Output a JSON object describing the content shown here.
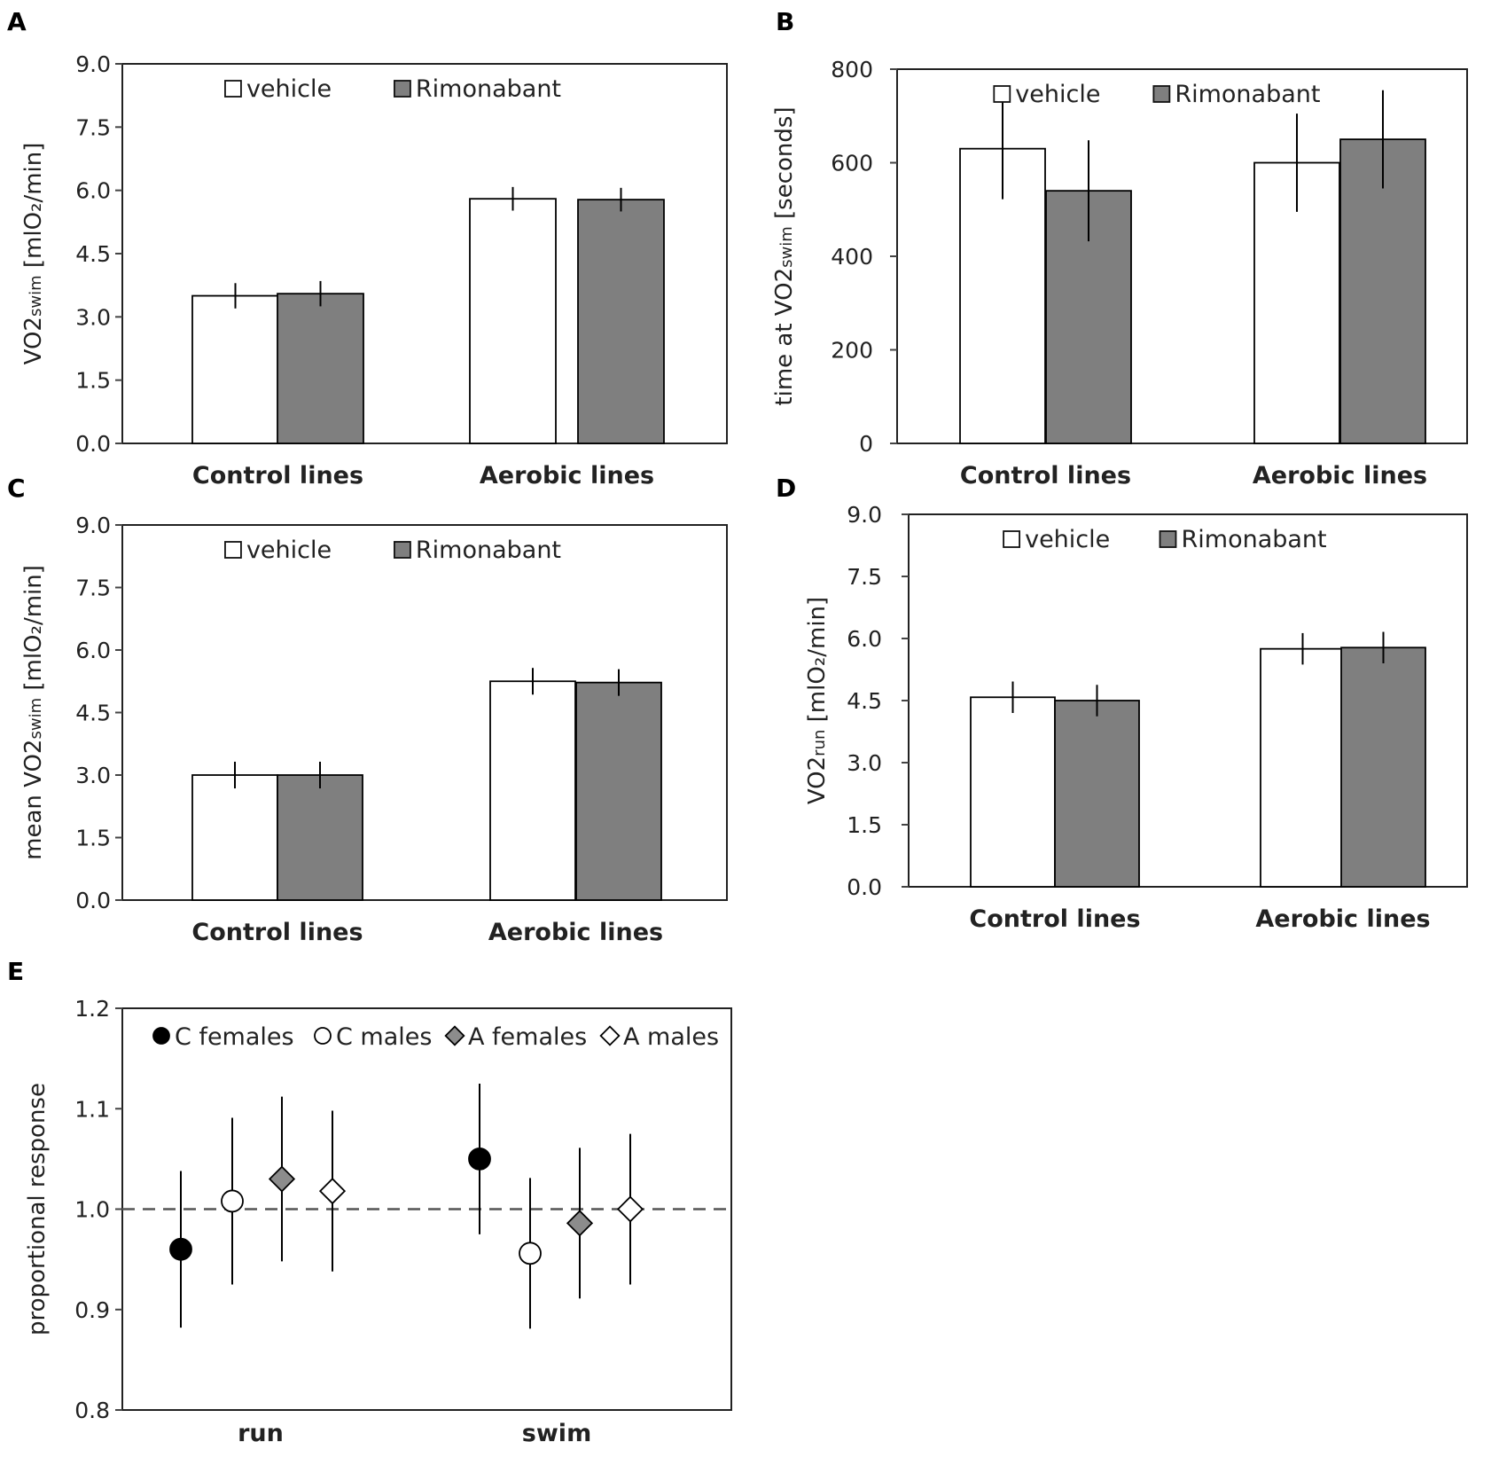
{
  "colors": {
    "vehicle": "#ffffff",
    "rimonabant": "#7f7f7f",
    "axis": "#444444",
    "frame": "#222222",
    "dark": "#000000",
    "diamond": "#8c8c8c"
  },
  "legend": {
    "vehicle": "vehicle",
    "rimonabant": "Rimonabant"
  },
  "chart_data": [
    {
      "panel": "A",
      "type": "bar",
      "ylabel": "VO2",
      "ylabel_sub": "swim",
      "ylabel_unit": "[mlO₂/min]",
      "categories": [
        "Control lines",
        "Aerobic lines"
      ],
      "ylim": [
        0,
        9.0
      ],
      "yticks": [
        "0.0",
        "1.5",
        "3.0",
        "4.5",
        "6.0",
        "7.5",
        "9.0"
      ],
      "series": [
        {
          "name": "vehicle",
          "values": [
            3.5,
            5.8
          ],
          "errors": [
            0.3,
            0.28
          ]
        },
        {
          "name": "Rimonabant",
          "values": [
            3.55,
            5.78
          ],
          "errors": [
            0.3,
            0.28
          ]
        }
      ]
    },
    {
      "panel": "B",
      "type": "bar",
      "ylabel": "time at VO2",
      "ylabel_sub": "swim",
      "ylabel_unit": "[seconds]",
      "categories": [
        "Control lines",
        "Aerobic lines"
      ],
      "ylim": [
        0,
        800
      ],
      "yticks": [
        "0",
        "200",
        "400",
        "600",
        "800"
      ],
      "series": [
        {
          "name": "vehicle",
          "values": [
            630,
            600
          ],
          "errors": [
            108,
            105
          ]
        },
        {
          "name": "Rimonabant",
          "values": [
            540,
            650
          ],
          "errors": [
            108,
            105
          ]
        }
      ]
    },
    {
      "panel": "C",
      "type": "bar",
      "ylabel": "mean VO2",
      "ylabel_sub": "swim",
      "ylabel_unit": "[mlO₂/min]",
      "categories": [
        "Control lines",
        "Aerobic lines"
      ],
      "ylim": [
        0,
        9.0
      ],
      "yticks": [
        "0.0",
        "1.5",
        "3.0",
        "4.5",
        "6.0",
        "7.5",
        "9.0"
      ],
      "series": [
        {
          "name": "vehicle",
          "values": [
            3.0,
            5.25
          ],
          "errors": [
            0.32,
            0.32
          ]
        },
        {
          "name": "Rimonabant",
          "values": [
            3.0,
            5.22
          ],
          "errors": [
            0.32,
            0.32
          ]
        }
      ]
    },
    {
      "panel": "D",
      "type": "bar",
      "ylabel": "VO2",
      "ylabel_sub": "run",
      "ylabel_unit": "[mlO₂/min]",
      "categories": [
        "Control lines",
        "Aerobic lines"
      ],
      "ylim": [
        0,
        9.0
      ],
      "yticks": [
        "0.0",
        "1.5",
        "3.0",
        "4.5",
        "6.0",
        "7.5",
        "9.0"
      ],
      "series": [
        {
          "name": "vehicle",
          "values": [
            4.58,
            5.75
          ],
          "errors": [
            0.38,
            0.38
          ]
        },
        {
          "name": "Rimonabant",
          "values": [
            4.5,
            5.78
          ],
          "errors": [
            0.38,
            0.38
          ]
        }
      ]
    },
    {
      "panel": "E",
      "type": "scatter",
      "ylabel": "proportional response",
      "categories": [
        "run",
        "swim"
      ],
      "ylim": [
        0.8,
        1.2
      ],
      "yticks": [
        "0.8",
        "0.9",
        "1.0",
        "1.1",
        "1.2"
      ],
      "reference_line": 1.0,
      "series": [
        {
          "name": "C females",
          "marker": "filled-circle",
          "values": [
            0.96,
            1.05
          ],
          "errors": [
            0.078,
            0.075
          ]
        },
        {
          "name": "C males",
          "marker": "open-circle",
          "values": [
            1.008,
            0.956
          ],
          "errors": [
            0.083,
            0.075
          ]
        },
        {
          "name": "A females",
          "marker": "filled-diamond",
          "values": [
            1.03,
            0.986
          ],
          "errors": [
            0.082,
            0.075
          ]
        },
        {
          "name": "A males",
          "marker": "open-diamond",
          "values": [
            1.018,
            1.0
          ],
          "errors": [
            0.08,
            0.075
          ]
        }
      ]
    }
  ]
}
